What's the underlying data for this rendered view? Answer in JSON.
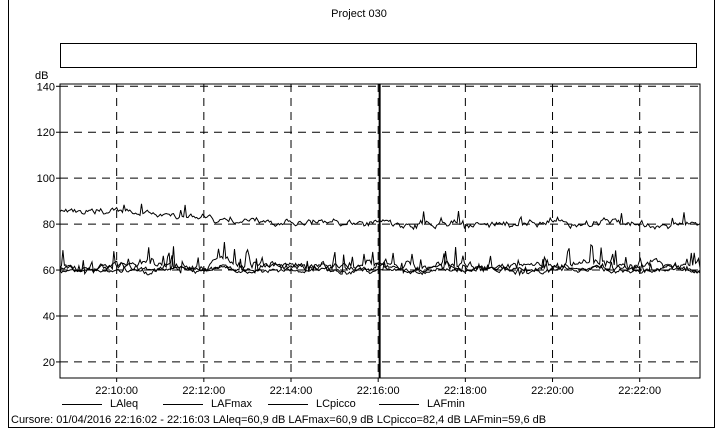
{
  "window": {
    "title": "Project 030"
  },
  "legend": [
    {
      "name": "LAleq"
    },
    {
      "name": "LAFmax"
    },
    {
      "name": "LCpicco"
    },
    {
      "name": "LAFmin"
    }
  ],
  "cursor_readout": "Cursore: 01/04/2016 22:16:02 - 22:16:03  LAleq=60,9 dB  LAFmax=60,9 dB  LCpicco=82,4 dB  LAFmin=59,6 dB",
  "chart_data": {
    "type": "line",
    "title": "Project 030",
    "ylabel": "dB",
    "xlabel": "",
    "ylim": [
      13,
      141
    ],
    "xlim": [
      "22:08:42",
      "22:23:23"
    ],
    "y_ticks": [
      20,
      40,
      60,
      80,
      100,
      120,
      140
    ],
    "x_ticks": [
      "22:10:00",
      "22:12:00",
      "22:14:00",
      "22:16:00",
      "22:18:00",
      "22:20:00",
      "22:22:00"
    ],
    "grid": true,
    "grid_style": "dashed",
    "legend_position": "bottom",
    "cursor": "22:16:02",
    "series": [
      {
        "name": "LAleq",
        "baseline": 61,
        "noise": 1.2,
        "peaks": 0.06,
        "peak_height": 5
      },
      {
        "name": "LAFmax",
        "baseline": 62,
        "noise": 1.6,
        "peaks": 0.12,
        "peak_height": 8
      },
      {
        "name": "LCpicco",
        "baseline": 81,
        "noise": 1.2,
        "peaks": 0.05,
        "peak_height": 5,
        "start": 86,
        "end": 80
      },
      {
        "name": "LAFmin",
        "baseline": 60,
        "noise": 0.8,
        "peaks": 0.02,
        "peak_height": 3
      }
    ]
  }
}
